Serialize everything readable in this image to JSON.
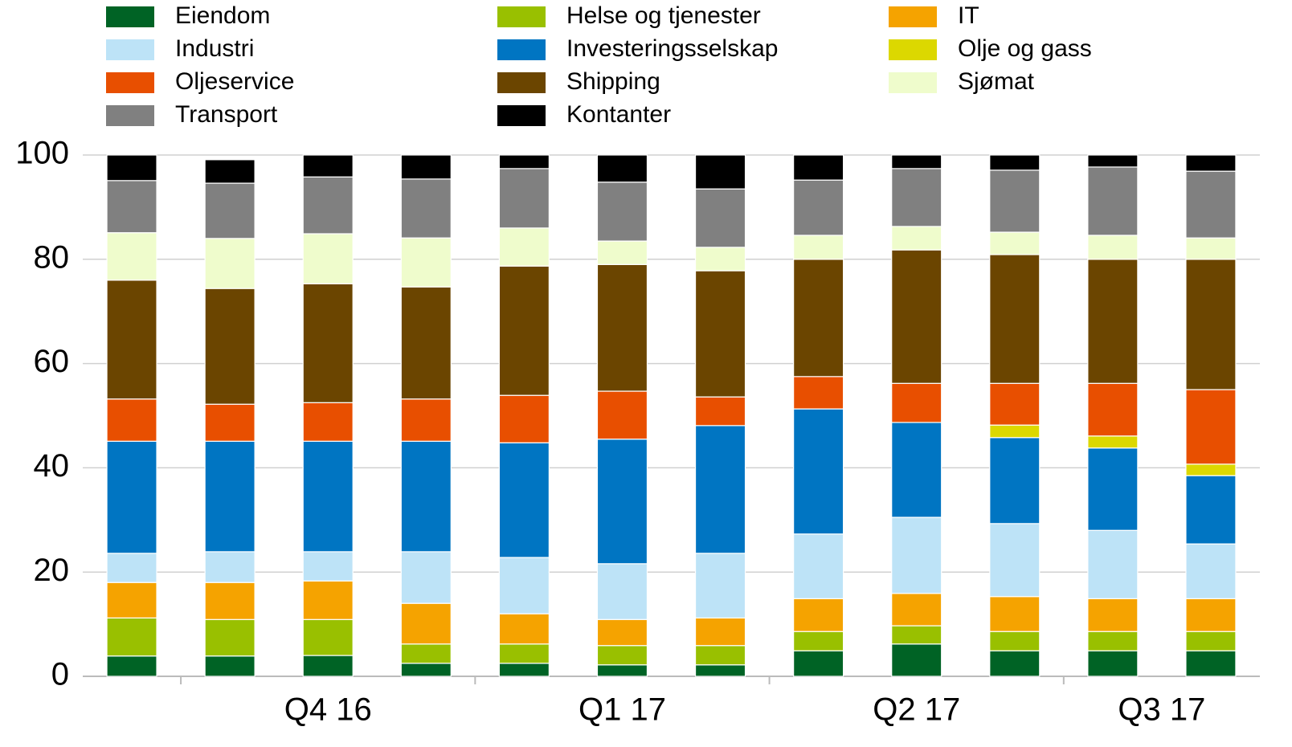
{
  "chart_data": {
    "type": "stacked_bar",
    "categories": [
      null,
      "Q4 16",
      null,
      null,
      "Q1 17",
      null,
      null,
      "Q2 17",
      null,
      null,
      "Q3 17",
      null
    ],
    "ylim": [
      0,
      100
    ],
    "yticks": [
      0,
      20,
      40,
      60,
      80,
      100
    ],
    "grid": true,
    "legend": "top",
    "series": [
      {
        "name": "Eiendom",
        "color": "#006325",
        "values": [
          3.9,
          3.9,
          4.0,
          2.5,
          2.5,
          2.2,
          2.2,
          4.9,
          6.2,
          4.9,
          4.9,
          4.9
        ]
      },
      {
        "name": "Helse og tjenester",
        "color": "#99c000",
        "values": [
          7.3,
          7.0,
          6.9,
          3.7,
          3.7,
          3.7,
          3.7,
          3.7,
          3.5,
          3.7,
          3.7,
          3.7
        ]
      },
      {
        "name": "IT",
        "color": "#f5a300",
        "values": [
          6.8,
          7.1,
          7.4,
          7.8,
          5.8,
          5.0,
          5.3,
          6.3,
          6.2,
          6.7,
          6.3,
          6.3
        ]
      },
      {
        "name": "Industri",
        "color": "#bde3f7",
        "values": [
          5.6,
          5.9,
          5.6,
          9.9,
          10.8,
          10.7,
          12.4,
          12.4,
          14.6,
          14.0,
          13.1,
          10.5
        ]
      },
      {
        "name": "Investeringsselskap",
        "color": "#0075c2",
        "values": [
          21.5,
          21.2,
          21.2,
          21.2,
          22.0,
          23.9,
          24.5,
          24.0,
          18.2,
          16.5,
          15.8,
          13.1
        ]
      },
      {
        "name": "Olje og gass",
        "color": "#dcd800",
        "values": [
          0,
          0,
          0,
          0,
          0,
          0,
          0,
          0,
          0,
          2.4,
          2.3,
          2.2
        ]
      },
      {
        "name": "Oljeservice",
        "color": "#e84f00",
        "values": [
          8.1,
          7.1,
          7.4,
          8.1,
          9.1,
          9.2,
          5.5,
          6.2,
          7.5,
          8.0,
          10.1,
          14.3
        ]
      },
      {
        "name": "Shipping",
        "color": "#6b4500",
        "values": [
          22.8,
          22.2,
          22.8,
          21.5,
          24.8,
          24.3,
          24.2,
          22.5,
          25.6,
          24.7,
          23.8,
          25.0
        ]
      },
      {
        "name": "Sjømat",
        "color": "#effccc",
        "values": [
          9.1,
          9.6,
          9.6,
          9.4,
          7.3,
          4.5,
          4.5,
          4.6,
          4.5,
          4.3,
          4.6,
          4.1
        ]
      },
      {
        "name": "Transport",
        "color": "#808080",
        "values": [
          10.0,
          10.6,
          10.9,
          11.3,
          11.4,
          11.3,
          11.2,
          10.6,
          11.1,
          11.9,
          13.1,
          12.8
        ]
      },
      {
        "name": "Kontanter",
        "color": "#000000",
        "values": [
          4.9,
          4.5,
          4.2,
          4.6,
          2.6,
          5.2,
          6.5,
          4.8,
          2.6,
          2.9,
          2.3,
          3.1
        ]
      }
    ]
  }
}
